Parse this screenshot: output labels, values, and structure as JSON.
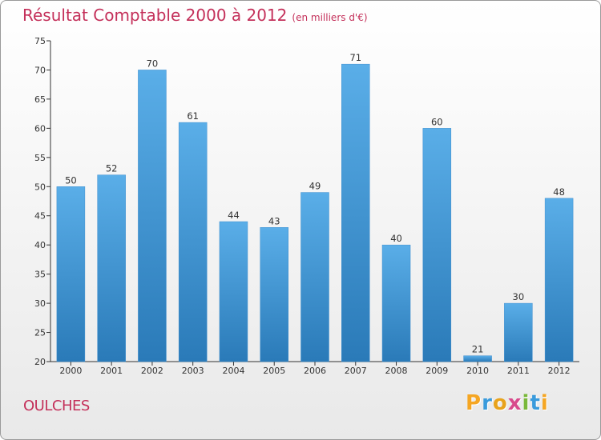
{
  "chart_data": {
    "type": "bar",
    "title": "Résultat Comptable 2000 à 2012",
    "subtitle": "(en milliers d'€)",
    "categories": [
      "2000",
      "2001",
      "2002",
      "2003",
      "2004",
      "2005",
      "2006",
      "2007",
      "2008",
      "2009",
      "2010",
      "2011",
      "2012"
    ],
    "values": [
      50,
      52,
      70,
      61,
      44,
      43,
      49,
      71,
      40,
      60,
      21,
      30,
      48
    ],
    "ylim": [
      20,
      75
    ],
    "yticks": [
      20,
      25,
      30,
      35,
      40,
      45,
      50,
      55,
      60,
      65,
      70,
      75
    ],
    "xlabel": "",
    "ylabel": "",
    "grid": false,
    "legend": "none"
  },
  "place": "OULCHES",
  "brand": {
    "letters": [
      "P",
      "r",
      "o",
      "x",
      "i",
      "t",
      "i"
    ],
    "colors": [
      "#f5a623",
      "#3a9bdc",
      "#e8a31c",
      "#d84a8c",
      "#7ab83a",
      "#3a9bdc",
      "#f5a623"
    ]
  },
  "colors": {
    "title": "#c4305a",
    "bar_top": "#5aaee8",
    "bar_bottom": "#2a7ab8"
  }
}
